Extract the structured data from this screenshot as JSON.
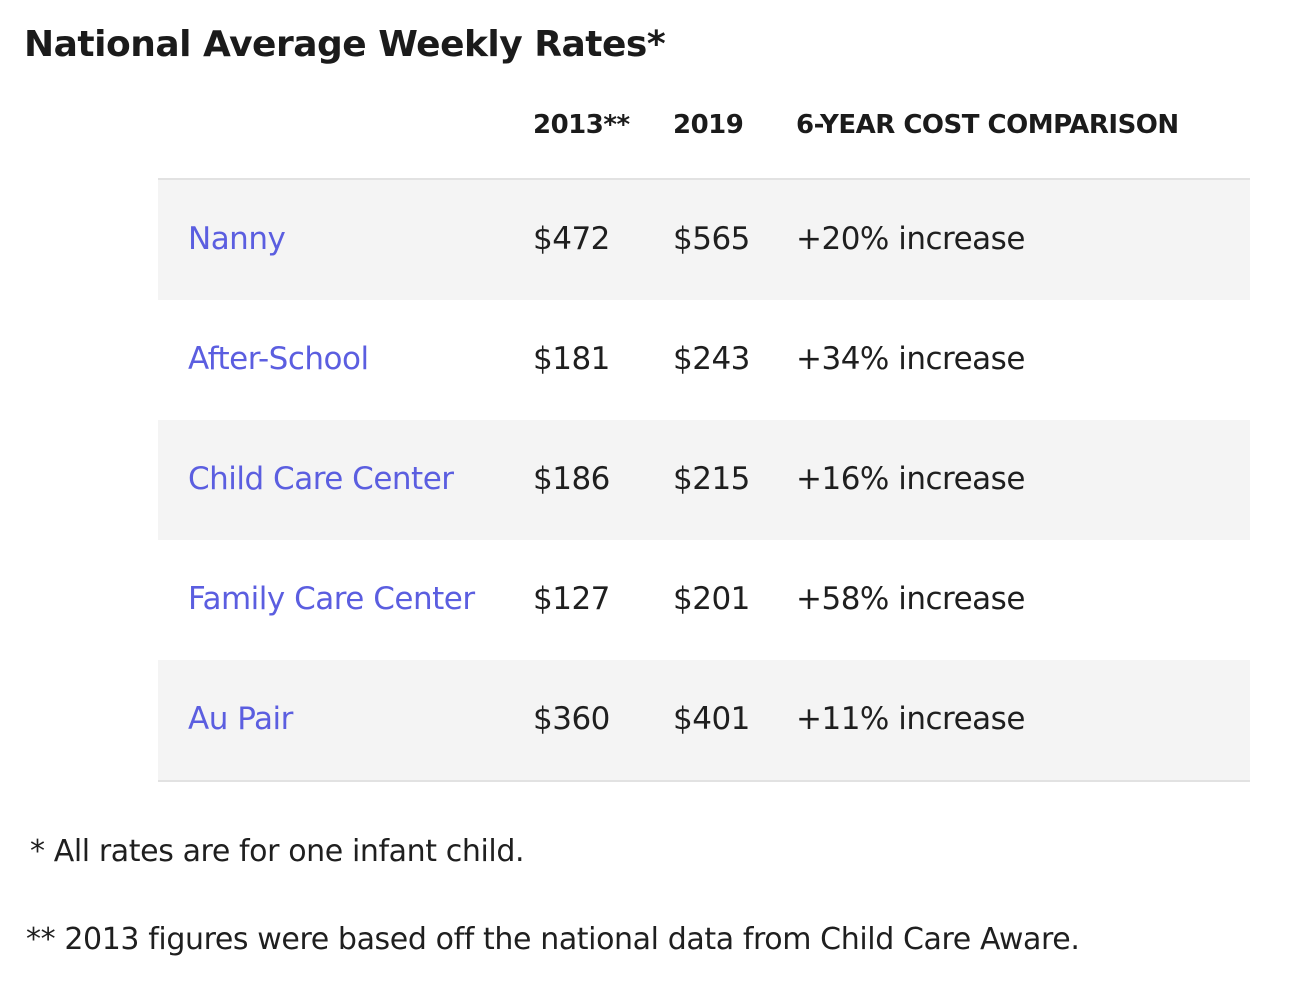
{
  "title": "National Average Weekly Rates*",
  "table": {
    "headers": {
      "col_2013": "2013**",
      "col_2019": "2019",
      "col_comparison": "6-YEAR COST COMPARISON"
    },
    "rows": [
      {
        "name": "Nanny",
        "rate_2013": "$472",
        "rate_2019": "$565",
        "comparison": "+20% increase"
      },
      {
        "name": "After-School",
        "rate_2013": "$181",
        "rate_2019": "$243",
        "comparison": "+34% increase"
      },
      {
        "name": "Child Care Center",
        "rate_2013": "$186",
        "rate_2019": "$215",
        "comparison": "+16% increase"
      },
      {
        "name": "Family Care Center",
        "rate_2013": "$127",
        "rate_2019": "$201",
        "comparison": "+58% increase"
      },
      {
        "name": "Au Pair",
        "rate_2013": "$360",
        "rate_2019": "$401",
        "comparison": "+11% increase"
      }
    ]
  },
  "footnotes": {
    "first": "* All rates are for one infant child.",
    "second": "** 2013 figures were based off the national data from Child Care Aware."
  },
  "colors": {
    "link": "#5b5ee0",
    "shaded_row": "#f4f4f4",
    "divider": "#e2e2e2",
    "text": "#1f1f1f"
  }
}
